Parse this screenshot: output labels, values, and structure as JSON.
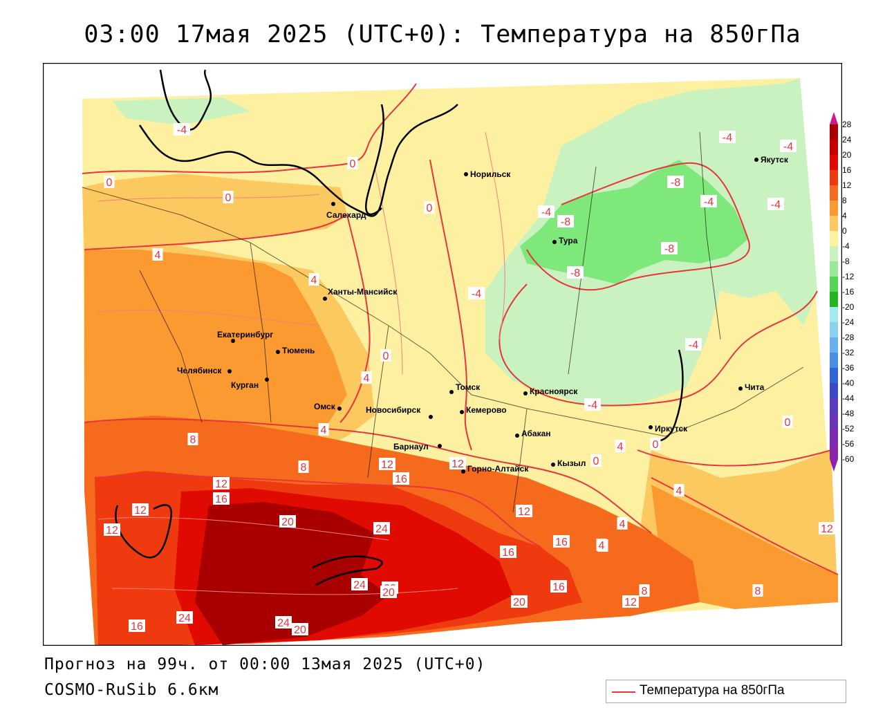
{
  "title": "03:00 17мая 2025 (UTC+0): Температура на 850гПа",
  "forecast_line": "Прогноз на 99ч. от 00:00 13мая 2025 (UTC+0)",
  "model_name": "COSMO-RuSib 6.6км",
  "legend_label": "Температура на 850гПа",
  "colors": {
    "contour_line": "#e8343c",
    "border": "#000000"
  },
  "colorbar": {
    "ticks": [
      "28",
      "24",
      "20",
      "16",
      "12",
      "8",
      "4",
      "0",
      "-4",
      "-8",
      "-12",
      "-16",
      "-20",
      "-24",
      "-28",
      "-32",
      "-36",
      "-40",
      "-44",
      "-48",
      "-52",
      "-56",
      "-60"
    ],
    "fill_colors": [
      "#a80000",
      "#c40000",
      "#e00a00",
      "#ef3a10",
      "#f66a1e",
      "#fb9a30",
      "#fcc860",
      "#fdf0a0",
      "#c9f2c0",
      "#9ae89a",
      "#55d455",
      "#22b522",
      "#a6e8f0",
      "#8ad0f0",
      "#6ab0ee",
      "#4a8ce6",
      "#2e66d8",
      "#3a48c8",
      "#5a3cc0",
      "#6a34b8",
      "#7a2cb0",
      "#8a24a8"
    ]
  },
  "cities": [
    {
      "name": "Норильск",
      "icon": "dot-marker"
    },
    {
      "name": "Якутск",
      "icon": "dot-marker"
    },
    {
      "name": "Салехард",
      "icon": "dot-marker"
    },
    {
      "name": "Тура",
      "icon": "dot-marker"
    },
    {
      "name": "Ханты-Мансийск",
      "icon": "dot-marker"
    },
    {
      "name": "Екатеринбург",
      "icon": "dot-marker"
    },
    {
      "name": "Тюмень",
      "icon": "dot-marker"
    },
    {
      "name": "Челябинск",
      "icon": "dot-marker"
    },
    {
      "name": "Курган",
      "icon": "dot-marker"
    },
    {
      "name": "Омск",
      "icon": "dot-marker"
    },
    {
      "name": "Томск",
      "icon": "dot-marker"
    },
    {
      "name": "Красноярск",
      "icon": "dot-marker"
    },
    {
      "name": "Новосибирск",
      "icon": "dot-marker"
    },
    {
      "name": "Кемерово",
      "icon": "dot-marker"
    },
    {
      "name": "Абакан",
      "icon": "dot-marker"
    },
    {
      "name": "Барнаул",
      "icon": "dot-marker"
    },
    {
      "name": "Горно-Алтайск",
      "icon": "dot-marker"
    },
    {
      "name": "Кызыл",
      "icon": "dot-marker"
    },
    {
      "name": "Иркутск",
      "icon": "dot-marker"
    },
    {
      "name": "Чита",
      "icon": "dot-marker"
    }
  ],
  "contour_labels": [
    "-4",
    "-4",
    "0",
    "0",
    "0",
    "0",
    "4",
    "4",
    "-4",
    "-8",
    "-8",
    "-8",
    "-8",
    "-4",
    "-4",
    "-4",
    "-4",
    "-4",
    "0",
    "4",
    "4",
    "8",
    "8",
    "12",
    "12",
    "12",
    "16",
    "20",
    "24",
    "20",
    "24",
    "20",
    "24",
    "24",
    "20",
    "16",
    "12",
    "12",
    "16",
    "16",
    "16",
    "8",
    "4",
    "4",
    "4",
    "12",
    "20",
    "12",
    "8",
    "0",
    "0",
    "0",
    "-4",
    "4",
    "8",
    "12",
    "16"
  ]
}
